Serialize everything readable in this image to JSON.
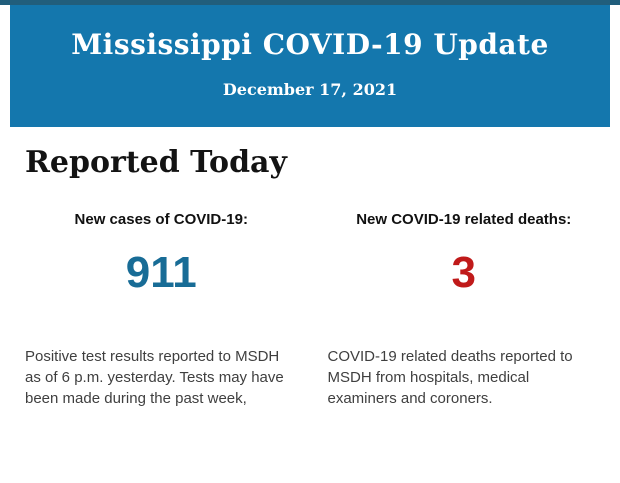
{
  "colors": {
    "top_strip": "#215e7c",
    "banner_background": "#1477ad",
    "banner_text": "#ffffff",
    "cases_value": "#186c96",
    "deaths_value": "#c01a1a",
    "body_text": "#3f3f3f"
  },
  "header": {
    "title": "Mississippi COVID-19 Update",
    "date": "December 17, 2021"
  },
  "main": {
    "heading": "Reported Today",
    "stats": [
      {
        "label": "New cases of COVID-19:",
        "value": "911",
        "value_color": "#186c96",
        "description": "Positive test results reported to MSDH as of 6 p.m. yesterday. Tests may have been made during the past week,"
      },
      {
        "label": "New COVID-19 related deaths:",
        "value": "3",
        "value_color": "#c01a1a",
        "description": "COVID-19 related deaths reported to MSDH from hospitals, medical examiners and coroners."
      }
    ]
  }
}
